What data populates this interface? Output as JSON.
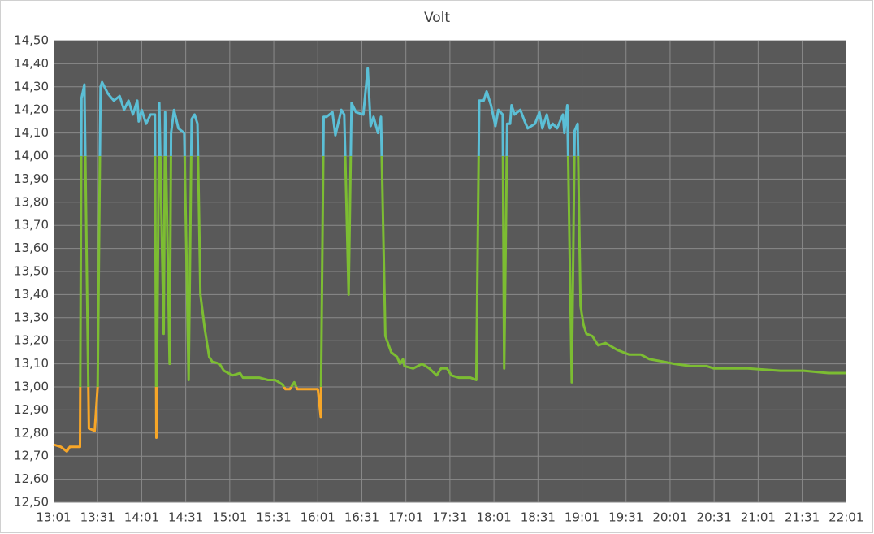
{
  "chart_data": {
    "type": "line",
    "title": "Volt",
    "x": [
      "13:01",
      "13:06",
      "13:10",
      "13:12",
      "13:19",
      "13:20",
      "13:22",
      "13:25",
      "13:29",
      "13:31",
      "13:33",
      "13:34",
      "13:38",
      "13:42",
      "13:46",
      "13:49",
      "13:52",
      "13:55",
      "13:58",
      "13:59",
      "14:01",
      "14:04",
      "14:07",
      "14:10",
      "14:11",
      "14:13",
      "14:16",
      "14:17",
      "14:20",
      "14:21",
      "14:23",
      "14:26",
      "14:30",
      "14:33",
      "14:35",
      "14:37",
      "14:39",
      "14:41",
      "14:44",
      "14:47",
      "14:49",
      "14:54",
      "14:57",
      "15:03",
      "15:08",
      "15:10",
      "15:21",
      "15:27",
      "15:32",
      "15:37",
      "15:39",
      "15:42",
      "15:45",
      "15:47",
      "16:01",
      "16:03",
      "16:05",
      "16:07",
      "16:11",
      "16:13",
      "16:17",
      "16:19",
      "16:22",
      "16:24",
      "16:27",
      "16:32",
      "16:35",
      "16:37",
      "16:39",
      "16:42",
      "16:44",
      "16:47",
      "16:51",
      "16:55",
      "16:57",
      "16:59",
      "17:00",
      "17:06",
      "17:12",
      "17:17",
      "17:22",
      "17:25",
      "17:29",
      "17:32",
      "17:37",
      "17:45",
      "17:49",
      "17:51",
      "17:54",
      "17:56",
      "17:59",
      "18:02",
      "18:04",
      "18:07",
      "18:08",
      "18:10",
      "18:12",
      "18:13",
      "18:15",
      "18:19",
      "18:22",
      "18:24",
      "18:29",
      "18:32",
      "18:34",
      "18:37",
      "18:39",
      "18:41",
      "18:44",
      "18:48",
      "18:49",
      "18:51",
      "18:54",
      "18:56",
      "18:58",
      "19:00",
      "19:02",
      "19:04",
      "19:08",
      "19:12",
      "19:17",
      "19:25",
      "19:33",
      "19:41",
      "19:47",
      "19:56",
      "20:04",
      "20:15",
      "20:26",
      "20:31",
      "20:54",
      "21:16",
      "21:32",
      "21:49",
      "22:01"
    ],
    "values": [
      12.75,
      12.74,
      12.72,
      12.74,
      12.74,
      14.25,
      14.31,
      12.82,
      12.81,
      13.0,
      14.3,
      14.32,
      14.27,
      14.24,
      14.26,
      14.2,
      14.24,
      14.18,
      14.24,
      14.15,
      14.2,
      14.14,
      14.18,
      14.18,
      12.78,
      14.23,
      13.23,
      14.19,
      13.1,
      14.1,
      14.2,
      14.12,
      14.1,
      13.03,
      14.16,
      14.18,
      14.14,
      13.4,
      13.25,
      13.13,
      13.11,
      13.1,
      13.07,
      13.05,
      13.06,
      13.04,
      13.04,
      13.03,
      13.03,
      13.01,
      12.99,
      12.99,
      13.02,
      12.99,
      12.99,
      12.87,
      14.17,
      14.17,
      14.19,
      14.09,
      14.2,
      14.18,
      13.4,
      14.23,
      14.19,
      14.18,
      14.38,
      14.13,
      14.17,
      14.1,
      14.17,
      13.22,
      13.15,
      13.13,
      13.1,
      13.12,
      13.09,
      13.08,
      13.1,
      13.08,
      13.05,
      13.08,
      13.08,
      13.05,
      13.04,
      13.04,
      13.03,
      14.24,
      14.24,
      14.28,
      14.22,
      14.13,
      14.2,
      14.18,
      13.08,
      14.14,
      14.14,
      14.22,
      14.18,
      14.2,
      14.15,
      14.12,
      14.14,
      14.19,
      14.12,
      14.18,
      14.12,
      14.14,
      14.12,
      14.18,
      14.1,
      14.22,
      13.02,
      14.11,
      14.14,
      13.35,
      13.27,
      13.23,
      13.22,
      13.18,
      13.19,
      13.16,
      13.14,
      13.14,
      13.12,
      13.11,
      13.1,
      13.09,
      13.09,
      13.08,
      13.08,
      13.07,
      13.07,
      13.06,
      13.06
    ],
    "thresholds": [
      13,
      14
    ],
    "band_colors": [
      "#f7a628",
      "#7cbd32",
      "#5bbfd6"
    ],
    "xlim": [
      "13:01",
      "22:01"
    ],
    "xticks": [
      "13:01",
      "13:31",
      "14:01",
      "14:31",
      "15:01",
      "15:31",
      "16:01",
      "16:31",
      "17:01",
      "17:31",
      "18:01",
      "18:31",
      "19:01",
      "19:31",
      "20:01",
      "20:31",
      "21:01",
      "21:31",
      "22:01"
    ],
    "ylim": [
      12.5,
      14.5
    ],
    "yticks": [
      {
        "value": 12.5,
        "label": "12,50"
      },
      {
        "value": 12.6,
        "label": "12,60"
      },
      {
        "value": 12.7,
        "label": "12,70"
      },
      {
        "value": 12.8,
        "label": "12,80"
      },
      {
        "value": 12.9,
        "label": "12,90"
      },
      {
        "value": 13,
        "label": "13,00"
      },
      {
        "value": 13.1,
        "label": "13,10"
      },
      {
        "value": 13.2,
        "label": "13,20"
      },
      {
        "value": 13.3,
        "label": "13,30"
      },
      {
        "value": 13.4,
        "label": "13,40"
      },
      {
        "value": 13.5,
        "label": "13,50"
      },
      {
        "value": 13.6,
        "label": "13,60"
      },
      {
        "value": 13.7,
        "label": "13,70"
      },
      {
        "value": 13.8,
        "label": "13,80"
      },
      {
        "value": 13.9,
        "label": "13,90"
      },
      {
        "value": 14,
        "label": "14,00"
      },
      {
        "value": 14.1,
        "label": "14,10"
      },
      {
        "value": 14.2,
        "label": "14,20"
      },
      {
        "value": 14.3,
        "label": "14,30"
      },
      {
        "value": 14.4,
        "label": "14,40"
      },
      {
        "value": 14.5,
        "label": "14,50"
      }
    ],
    "grid": true
  }
}
